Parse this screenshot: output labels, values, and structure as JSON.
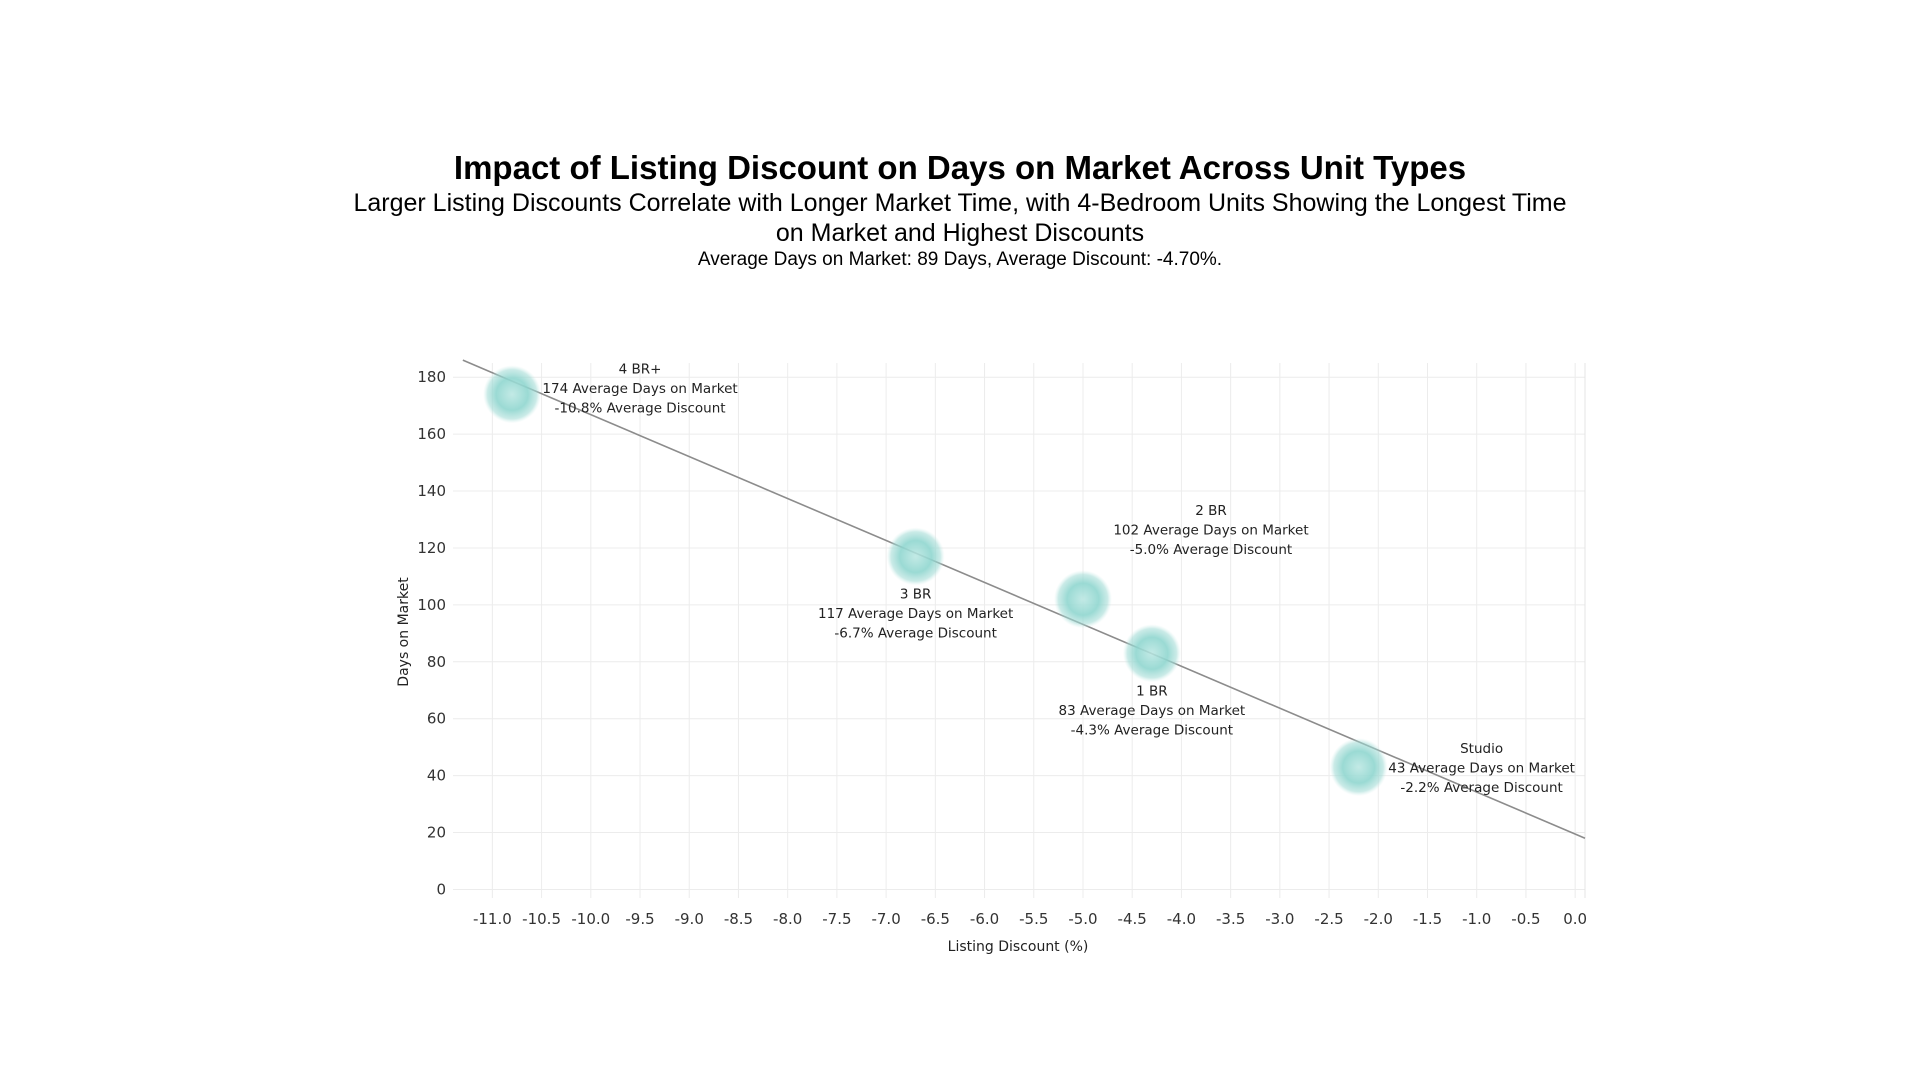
{
  "chart_data": {
    "type": "scatter",
    "title": "Impact of Listing Discount on Days on Market Across Unit Types",
    "subtitle": "Larger Listing Discounts Correlate with Longer Market Time, with 4-Bedroom Units Showing the Longest Time on Market and Highest Discounts",
    "note": "Average Days on Market: 89 Days, Average Discount: -4.70%.",
    "xlabel": "Listing Discount (%)",
    "ylabel": "Days on Market",
    "xlim": [
      -11.4,
      0.1
    ],
    "ylim": [
      -3,
      185
    ],
    "xticks": [
      -11.0,
      -10.5,
      -10.0,
      -9.5,
      -9.0,
      -8.5,
      -8.0,
      -7.5,
      -7.0,
      -6.5,
      -6.0,
      -5.5,
      -5.0,
      -4.5,
      -4.0,
      -3.5,
      -3.0,
      -2.5,
      -2.0,
      -1.5,
      -1.0,
      -0.5,
      0.0
    ],
    "xtick_labels": [
      "-11.0",
      "-10.5",
      "-10.0",
      "-9.5",
      "-9.0",
      "-8.5",
      "-8.0",
      "-7.5",
      "-7.0",
      "-6.5",
      "-6.0",
      "-5.5",
      "-5.0",
      "-4.5",
      "-4.0",
      "-3.5",
      "-3.0",
      "-2.5",
      "-2.0",
      "-1.5",
      "-1.0",
      "-0.5",
      "0.0"
    ],
    "yticks": [
      0,
      20,
      40,
      60,
      80,
      100,
      120,
      140,
      160,
      180
    ],
    "ytick_labels": [
      "0",
      "20",
      "40",
      "60",
      "80",
      "100",
      "120",
      "140",
      "160",
      "180"
    ],
    "grid": true,
    "trendline": {
      "x": [
        -11.3,
        0.1
      ],
      "y": [
        186,
        18
      ]
    },
    "marker_color": "#7ccfc8",
    "trend_color": "#8c8c8c",
    "points": [
      {
        "name": "4 BR+",
        "x": -10.8,
        "y": 174,
        "days_label": "174 Average Days on Market",
        "discount_label": "-10.8% Average Discount",
        "label_pos": "top-right"
      },
      {
        "name": "3 BR",
        "x": -6.7,
        "y": 117,
        "days_label": "117 Average Days on Market",
        "discount_label": "-6.7% Average Discount",
        "label_pos": "bottom"
      },
      {
        "name": "2 BR",
        "x": -5.0,
        "y": 102,
        "days_label": "102 Average Days on Market",
        "discount_label": "-5.0% Average Discount",
        "label_pos": "top-right"
      },
      {
        "name": "1 BR",
        "x": -4.3,
        "y": 83,
        "days_label": "83 Average Days on Market",
        "discount_label": "-4.3% Average Discount",
        "label_pos": "bottom"
      },
      {
        "name": "Studio",
        "x": -2.2,
        "y": 43,
        "days_label": "43 Average Days on Market",
        "discount_label": "-2.2% Average Discount",
        "label_pos": "right"
      }
    ]
  }
}
